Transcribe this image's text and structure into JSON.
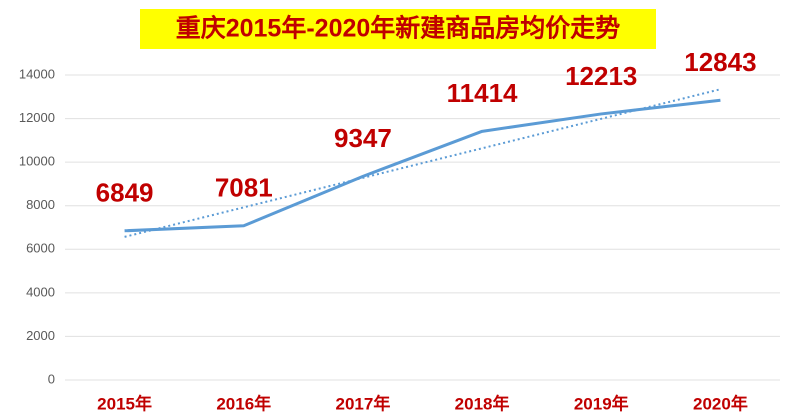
{
  "chart_data": {
    "type": "line",
    "title": "重庆2015年-2020年新建商品房均价走势",
    "categories": [
      "2015年",
      "2016年",
      "2017年",
      "2018年",
      "2019年",
      "2020年"
    ],
    "values": [
      6849,
      7081,
      9347,
      11414,
      12213,
      12843
    ],
    "color": "#5b9bd5",
    "ylim": [
      0,
      14000
    ],
    "yticks": [
      0,
      2000,
      4000,
      6000,
      8000,
      10000,
      12000,
      14000
    ],
    "grid": true,
    "data_labels": true,
    "title_background": "#ffff00",
    "trendline": {
      "type": "linear",
      "color": "#5b9bd5",
      "style": "dotted"
    }
  }
}
